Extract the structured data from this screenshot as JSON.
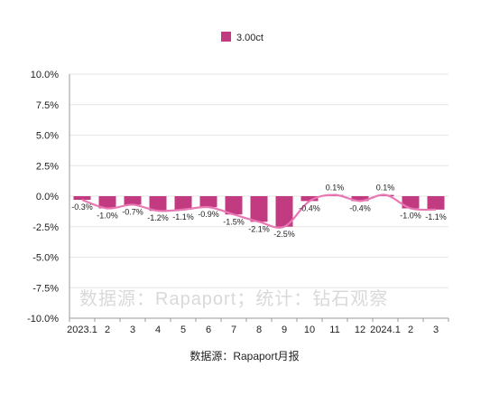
{
  "chart_data": {
    "type": "bar",
    "categories": [
      "2023.1",
      "2",
      "3",
      "4",
      "5",
      "6",
      "7",
      "8",
      "9",
      "10",
      "11",
      "12",
      "2024.1",
      "2",
      "3"
    ],
    "series": [
      {
        "name": "3.00ct",
        "values": [
          -0.3,
          -1.0,
          -0.7,
          -1.2,
          -1.1,
          -0.9,
          -1.5,
          -2.1,
          -2.5,
          -0.4,
          0.1,
          -0.4,
          0.1,
          -1.0,
          -1.1
        ],
        "labels": [
          "-0.3%",
          "-1.0%",
          "-0.7%",
          "-1.2%",
          "-1.1%",
          "-0.9%",
          "-1.5%",
          "-2.1%",
          "-2.5%",
          "-0.4%",
          "0.1%",
          "-0.4%",
          "0.1%",
          "-1.0%",
          "-1.1%"
        ]
      }
    ],
    "trendline": true,
    "ylim": [
      -10,
      10
    ],
    "yticks": [
      10,
      7.5,
      5,
      2.5,
      0,
      -2.5,
      -5,
      -7.5,
      -10
    ],
    "ytick_labels": [
      "10.0%",
      "7.5%",
      "5.0%",
      "2.5%",
      "0.0%",
      "-2.5%",
      "-5.0%",
      "-7.5%",
      "-10.0%"
    ],
    "grid": "horizontal",
    "legend": "top-center",
    "bar_color": "#c23b80",
    "line_color": "#e878b4",
    "grid_color": "#e6e6e6",
    "watermark": "数据源：Rapaport；统计：钻石观察",
    "source": "数据源：Rapaport月报"
  }
}
